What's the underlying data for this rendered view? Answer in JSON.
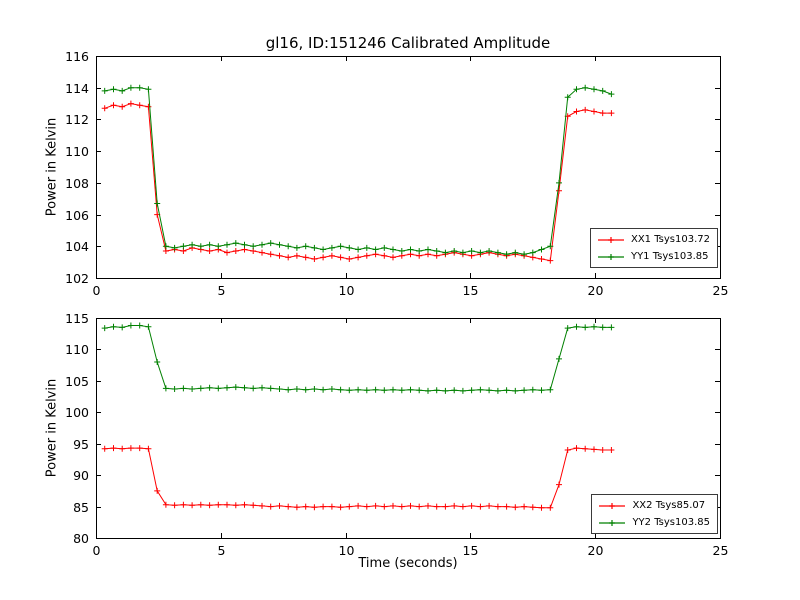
{
  "title": "gl16, ID:151246 Calibrated Amplitude",
  "chart_data": [
    {
      "type": "line",
      "ylabel": "Power in Kelvin",
      "xlabel": "",
      "xlim": [
        0,
        25
      ],
      "ylim": [
        102,
        116
      ],
      "xticks": [
        0,
        5,
        10,
        15,
        20,
        25
      ],
      "yticks": [
        102,
        104,
        106,
        108,
        110,
        112,
        114,
        116
      ],
      "grid": false,
      "legend_position": "lower right",
      "marker": "plus",
      "x": [
        0.35,
        0.7,
        1.05,
        1.4,
        1.75,
        2.1,
        2.45,
        2.8,
        3.15,
        3.5,
        3.85,
        4.2,
        4.55,
        4.9,
        5.25,
        5.6,
        5.95,
        6.3,
        6.65,
        7.0,
        7.35,
        7.7,
        8.05,
        8.4,
        8.75,
        9.1,
        9.45,
        9.8,
        10.15,
        10.5,
        10.85,
        11.2,
        11.55,
        11.9,
        12.25,
        12.6,
        12.95,
        13.3,
        13.65,
        14.0,
        14.35,
        14.7,
        15.05,
        15.4,
        15.75,
        16.1,
        16.45,
        16.8,
        17.15,
        17.5,
        17.85,
        18.2,
        18.55,
        18.9,
        19.25,
        19.6,
        19.95,
        20.3,
        20.65
      ],
      "series": [
        {
          "name": "XX1 Tsys103.72",
          "color": "#ff0000",
          "values": [
            112.7,
            112.9,
            112.8,
            113.0,
            112.9,
            112.8,
            106.0,
            103.7,
            103.8,
            103.7,
            103.9,
            103.8,
            103.7,
            103.8,
            103.6,
            103.7,
            103.8,
            103.7,
            103.6,
            103.5,
            103.4,
            103.3,
            103.4,
            103.3,
            103.2,
            103.3,
            103.4,
            103.3,
            103.2,
            103.3,
            103.4,
            103.5,
            103.4,
            103.3,
            103.4,
            103.5,
            103.4,
            103.5,
            103.4,
            103.5,
            103.6,
            103.5,
            103.4,
            103.5,
            103.6,
            103.5,
            103.4,
            103.5,
            103.4,
            103.3,
            103.2,
            103.1,
            107.5,
            112.2,
            112.5,
            112.6,
            112.5,
            112.4,
            112.4
          ]
        },
        {
          "name": "YY1 Tsys103.85",
          "color": "#008000",
          "values": [
            113.8,
            113.9,
            113.8,
            114.0,
            114.0,
            113.9,
            106.7,
            104.0,
            103.9,
            104.0,
            104.1,
            104.0,
            104.1,
            104.0,
            104.1,
            104.2,
            104.1,
            104.0,
            104.1,
            104.2,
            104.1,
            104.0,
            103.9,
            104.0,
            103.9,
            103.8,
            103.9,
            104.0,
            103.9,
            103.8,
            103.9,
            103.8,
            103.9,
            103.8,
            103.7,
            103.8,
            103.7,
            103.8,
            103.7,
            103.6,
            103.7,
            103.6,
            103.7,
            103.6,
            103.7,
            103.6,
            103.5,
            103.6,
            103.5,
            103.6,
            103.8,
            104.0,
            108.0,
            113.4,
            113.9,
            114.0,
            113.9,
            113.8,
            113.6
          ]
        }
      ]
    },
    {
      "type": "line",
      "ylabel": "Power in Kelvin",
      "xlabel": "Time (seconds)",
      "xlim": [
        0,
        25
      ],
      "ylim": [
        80,
        115
      ],
      "xticks": [
        0,
        5,
        10,
        15,
        20,
        25
      ],
      "yticks": [
        80,
        85,
        90,
        95,
        100,
        105,
        110,
        115
      ],
      "grid": false,
      "legend_position": "lower right",
      "marker": "plus",
      "x": [
        0.35,
        0.7,
        1.05,
        1.4,
        1.75,
        2.1,
        2.45,
        2.8,
        3.15,
        3.5,
        3.85,
        4.2,
        4.55,
        4.9,
        5.25,
        5.6,
        5.95,
        6.3,
        6.65,
        7.0,
        7.35,
        7.7,
        8.05,
        8.4,
        8.75,
        9.1,
        9.45,
        9.8,
        10.15,
        10.5,
        10.85,
        11.2,
        11.55,
        11.9,
        12.25,
        12.6,
        12.95,
        13.3,
        13.65,
        14.0,
        14.35,
        14.7,
        15.05,
        15.4,
        15.75,
        16.1,
        16.45,
        16.8,
        17.15,
        17.5,
        17.85,
        18.2,
        18.55,
        18.9,
        19.25,
        19.6,
        19.95,
        20.3,
        20.65
      ],
      "series": [
        {
          "name": "XX2 Tsys85.07",
          "color": "#ff0000",
          "values": [
            94.2,
            94.3,
            94.2,
            94.3,
            94.3,
            94.2,
            87.5,
            85.3,
            85.2,
            85.3,
            85.2,
            85.3,
            85.2,
            85.3,
            85.3,
            85.2,
            85.3,
            85.2,
            85.1,
            85.0,
            85.1,
            85.0,
            84.9,
            85.0,
            84.9,
            85.0,
            85.0,
            84.9,
            85.0,
            85.1,
            85.0,
            85.1,
            85.0,
            85.1,
            85.0,
            85.1,
            85.0,
            85.1,
            85.0,
            85.0,
            85.1,
            85.0,
            85.1,
            85.0,
            85.1,
            85.0,
            85.0,
            84.9,
            85.0,
            84.9,
            84.8,
            84.8,
            88.5,
            94.0,
            94.3,
            94.2,
            94.1,
            94.0,
            94.0
          ]
        },
        {
          "name": "YY2 Tsys103.85",
          "color": "#008000",
          "values": [
            113.4,
            113.6,
            113.5,
            113.8,
            113.8,
            113.6,
            108.0,
            103.8,
            103.7,
            103.8,
            103.7,
            103.8,
            103.9,
            103.8,
            103.9,
            104.0,
            103.9,
            103.8,
            103.9,
            103.8,
            103.7,
            103.6,
            103.7,
            103.6,
            103.7,
            103.6,
            103.7,
            103.6,
            103.5,
            103.6,
            103.5,
            103.6,
            103.5,
            103.6,
            103.5,
            103.6,
            103.5,
            103.4,
            103.5,
            103.4,
            103.5,
            103.4,
            103.5,
            103.6,
            103.5,
            103.4,
            103.5,
            103.4,
            103.5,
            103.6,
            103.5,
            103.6,
            108.5,
            113.4,
            113.6,
            113.5,
            113.6,
            113.5,
            113.5
          ]
        }
      ]
    }
  ]
}
